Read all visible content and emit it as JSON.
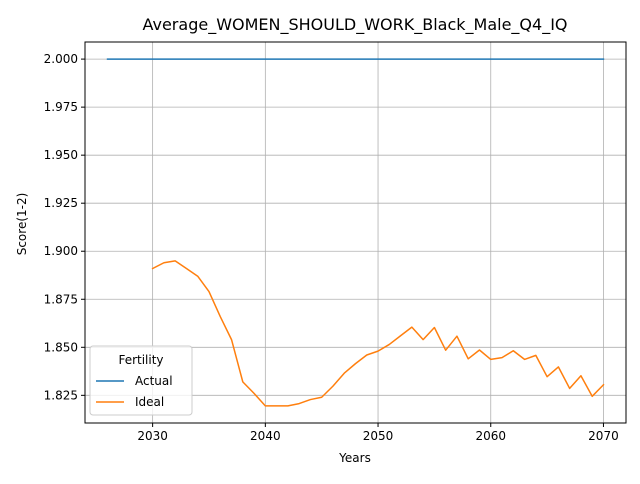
{
  "chart_data": {
    "type": "line",
    "title": "Average_WOMEN_SHOULD_WORK_Black_Male_Q4_IQ",
    "xlabel": "Years",
    "ylabel": "Score(1-2)",
    "xlim": [
      2024,
      2072
    ],
    "ylim": [
      1.8106,
      2.0089
    ],
    "xticks": [
      2030,
      2040,
      2050,
      2060,
      2070
    ],
    "yticks": [
      1.825,
      1.85,
      1.875,
      1.9,
      1.925,
      1.95,
      1.975,
      2.0
    ],
    "ytick_labels": [
      "1.825",
      "1.850",
      "1.875",
      "1.900",
      "1.925",
      "1.950",
      "1.975",
      "2.000"
    ],
    "grid": true,
    "legend": {
      "title": "Fertility",
      "placement": "lower-left"
    },
    "series": [
      {
        "name": "Actual",
        "color": "#1f77b4",
        "x": [
          2026,
          2070
        ],
        "y": [
          2.0,
          2.0
        ]
      },
      {
        "name": "Ideal",
        "color": "#ff7f0e",
        "x": [
          2030,
          2031,
          2032,
          2033,
          2034,
          2035,
          2036,
          2037,
          2038,
          2039,
          2040,
          2041,
          2042,
          2043,
          2044,
          2045,
          2046,
          2047,
          2048,
          2049,
          2050,
          2051,
          2052,
          2053,
          2054,
          2055,
          2056,
          2057,
          2058,
          2059,
          2060,
          2061,
          2062,
          2063,
          2064,
          2065,
          2066,
          2067,
          2068,
          2069,
          2070
        ],
        "y": [
          1.891,
          1.894,
          1.895,
          1.891,
          1.887,
          1.879,
          1.866,
          1.854,
          1.832,
          1.826,
          1.8195,
          1.8195,
          1.8195,
          1.8207,
          1.8228,
          1.824,
          1.8298,
          1.8365,
          1.8415,
          1.846,
          1.848,
          1.8515,
          1.856,
          1.8605,
          1.854,
          1.8603,
          1.8485,
          1.8558,
          1.844,
          1.8486,
          1.8437,
          1.8446,
          1.8482,
          1.8437,
          1.8458,
          1.8347,
          1.8398,
          1.8286,
          1.8352,
          1.8245,
          1.8305
        ]
      }
    ]
  }
}
